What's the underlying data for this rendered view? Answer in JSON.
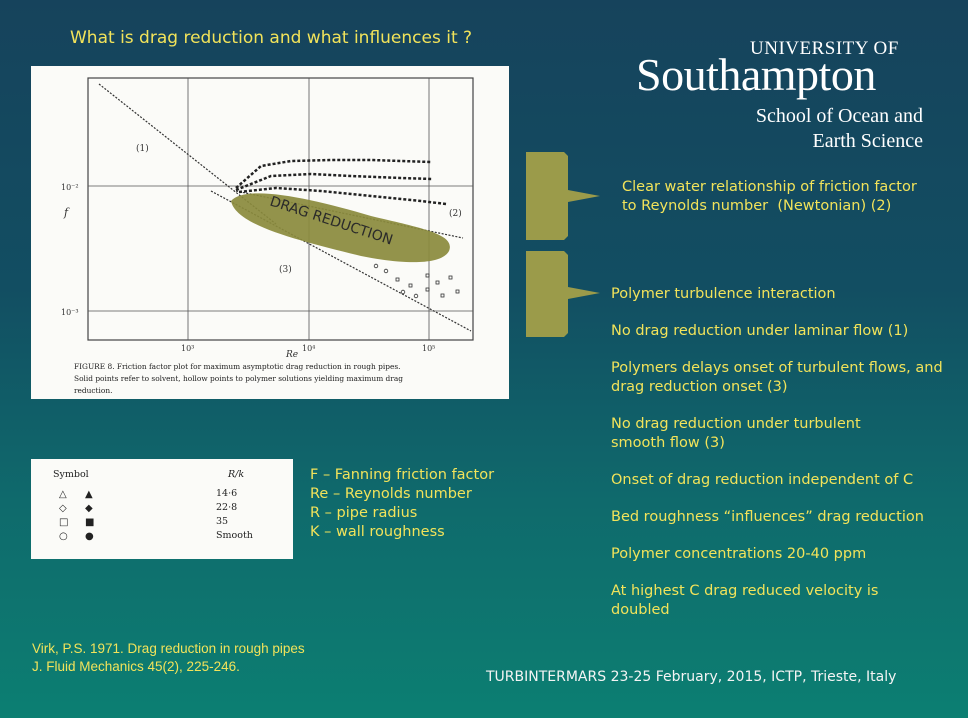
{
  "title": "What is drag reduction and what influences it ?",
  "logo": {
    "university_of": "UNIVERSITY OF",
    "southampton": "Southampton",
    "school_line1": "School of Ocean and",
    "school_line2": "Earth Science"
  },
  "figure": {
    "y_label": "f",
    "x_label": "Re",
    "y_tick_top": "10⁻²",
    "y_tick_bottom": "10⁻³",
    "x_ticks": [
      "10³",
      "10⁴",
      "10⁵"
    ],
    "curve_label_1": "(1)",
    "curve_label_2": "(2)",
    "curve_label_3": "(3)",
    "annotation": "DRAG REDUCTION",
    "caption_line1": "FIGURE 8. Friction factor plot for maximum asymptotic drag reduction in rough pipes.",
    "caption_line2": "Solid points refer to solvent, hollow points to polymer solutions yielding maximum drag",
    "caption_line3": "reduction.",
    "colors": {
      "annotation_fill": "#8a8a3c",
      "paper": "#fbfbf8"
    }
  },
  "symbol_table": {
    "header_symbol": "Symbol",
    "header_rk": "R/k",
    "rows": [
      {
        "hollow": "△",
        "solid": "▲",
        "value": "14·6"
      },
      {
        "hollow": "◇",
        "solid": "◆",
        "value": "22·8"
      },
      {
        "hollow": "□",
        "solid": "■",
        "value": "35"
      },
      {
        "hollow": "○",
        "solid": "●",
        "value": "Smooth"
      }
    ]
  },
  "definitions": [
    "F – Fanning friction factor",
    "Re – Reynolds number",
    "R – pipe radius",
    "K – wall roughness"
  ],
  "reference": {
    "line1": "Virk, P.S. 1971. Drag reduction in rough pipes",
    "line2": "J. Fluid Mechanics 45(2), 225-246."
  },
  "clear_water": {
    "line1": "Clear water relationship of friction factor",
    "line2": "to Reynolds number  (Newtonian) (2)"
  },
  "bullets": [
    "Polymer turbulence interaction",
    "No drag reduction under laminar flow (1)",
    "Polymers delays onset of turbulent flows, and drag reduction onset (3)",
    "No drag reduction under turbulent smooth flow (3)",
    "Onset of drag reduction independent of C",
    "Bed roughness “influences” drag reduction",
    "Polymer concentrations 20-40 ppm",
    "At highest C drag reduced velocity is doubled"
  ],
  "footer": "TURBINTERMARS 23-25 February, 2015, ICTP, Trieste, Italy",
  "colors": {
    "accent_yellow": "#f2e35a",
    "bracket_olive": "#9b9b4a"
  }
}
